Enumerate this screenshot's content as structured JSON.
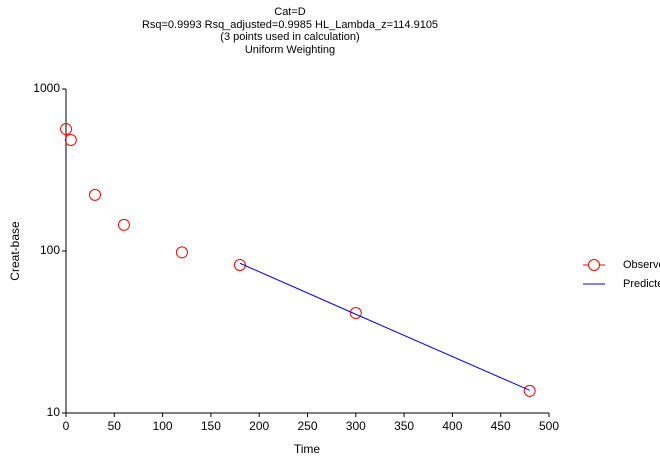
{
  "chart_data": {
    "type": "scatter-line",
    "title": "Cat=D",
    "subtitle_lines": [
      "Rsq=0.9993  Rsq_adjusted=0.9985  HL_Lambda_z=114.9105",
      "(3 points used in calculation)",
      "Uniform Weighting"
    ],
    "x_label": "Time",
    "y_label": "Creat-base",
    "xlim": [
      0,
      500
    ],
    "xticks": [
      0,
      50,
      100,
      150,
      200,
      250,
      300,
      350,
      400,
      450,
      500
    ],
    "ylim": [
      10,
      1000
    ],
    "yticks": [
      10,
      100,
      1000
    ],
    "y_log": true,
    "legend": "right",
    "series": [
      {
        "name": "Observed",
        "color": "#ff0000",
        "marker": "circle",
        "line": false,
        "x": [
          0,
          5,
          30,
          60,
          120,
          180,
          300,
          480
        ],
        "values": [
          566,
          484,
          222,
          145,
          98,
          82,
          41.4,
          13.7
        ]
      },
      {
        "name": "Predicted",
        "color": "#0000ff",
        "marker": null,
        "line": true,
        "x": [
          180,
          300,
          480
        ],
        "values": [
          84,
          40.7,
          13.8
        ]
      }
    ]
  }
}
